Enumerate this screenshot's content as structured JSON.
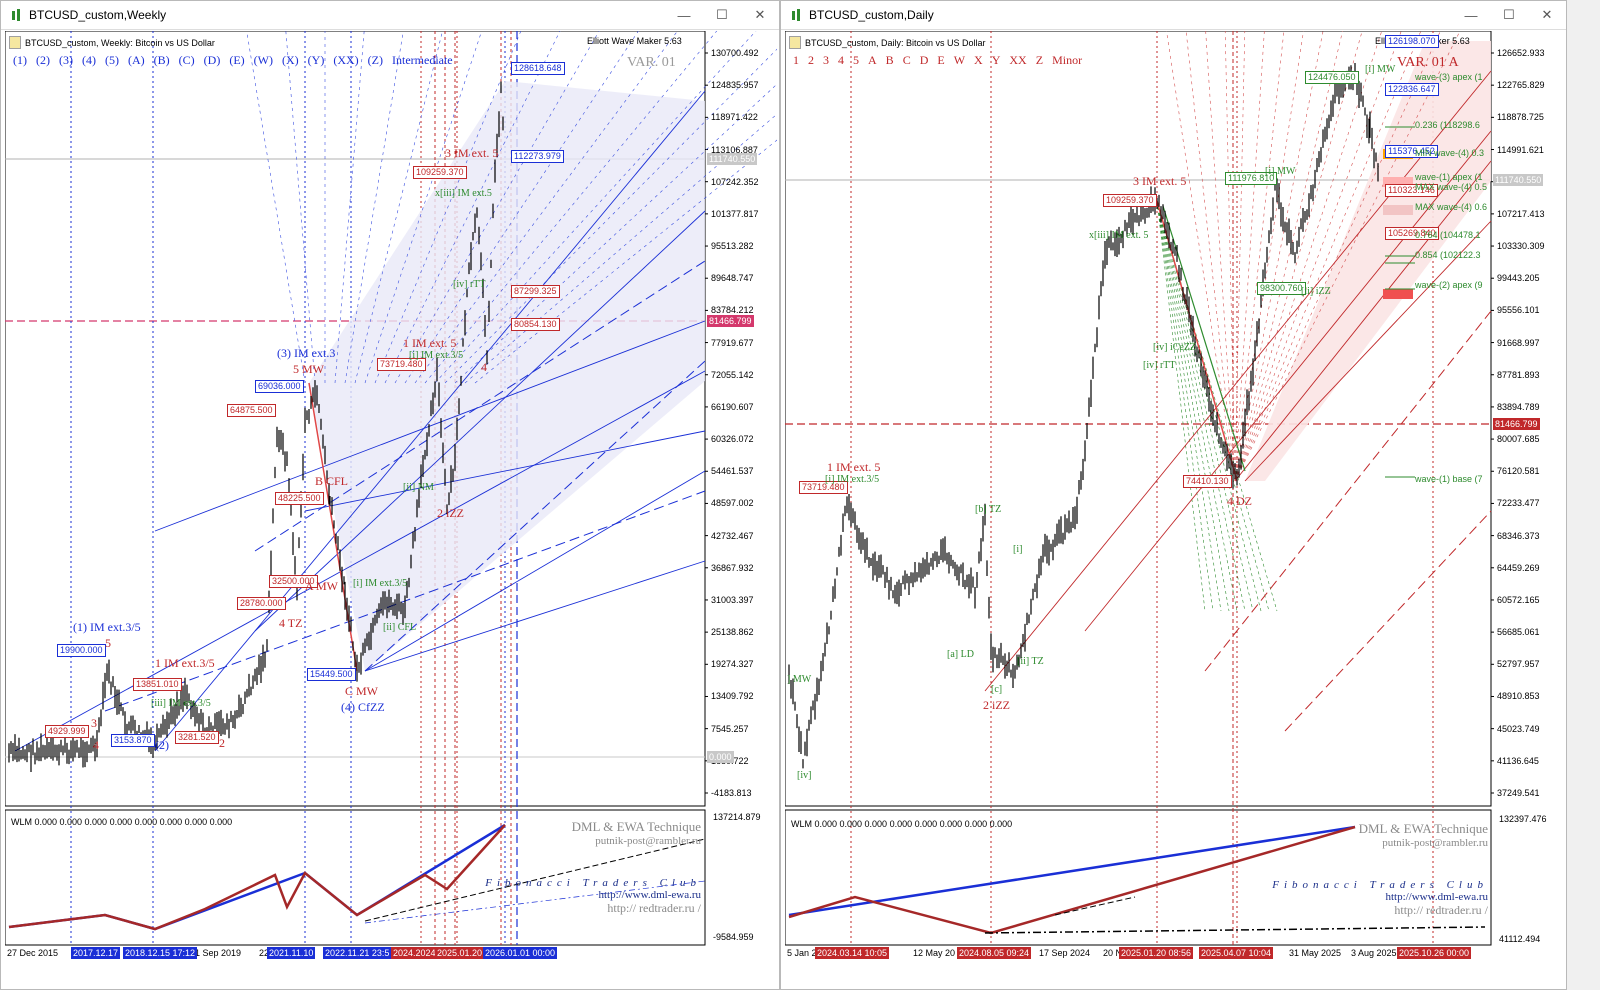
{
  "left_window": {
    "title": "BTCUSD_custom,Weekly",
    "chart_header": "BTCUSD_custom, Weekly:  Bitcoin vs US Dollar",
    "ewm_label": "Elliott Wave Maker 5.63",
    "var_label": "VAR. 01",
    "wave_buttons": [
      "(1)",
      "(2)",
      "(3)",
      "(4)",
      "(5)",
      "(A)",
      "(B)",
      "(C)",
      "(D)",
      "(E)",
      "(W)",
      "(X)",
      "(Y)",
      "(XX)",
      "(Z)",
      "Intermediate"
    ],
    "price_ticks": [
      "130700.492",
      "124835.957",
      "118971.422",
      "113106.887",
      "107242.352",
      "101377.817",
      "95513.282",
      "89648.747",
      "83784.212",
      "77919.677",
      "72055.142",
      "66190.607",
      "60326.072",
      "54461.537",
      "48597.002",
      "42732.467",
      "36867.932",
      "31003.397",
      "25138.862",
      "19274.327",
      "13409.792",
      "7545.257",
      "1680.722",
      "-4183.813"
    ],
    "current_price": "111740.550",
    "hline_price": "81466.799",
    "zero_label": "0.000",
    "price_boxes": [
      {
        "text": "128618.648",
        "color": "#1a2fd6"
      },
      {
        "text": "112273.979",
        "color": "#1a2fd6"
      },
      {
        "text": "109259.370",
        "color": "#c0282a"
      },
      {
        "text": "87299.325",
        "color": "#c0282a"
      },
      {
        "text": "80854.130",
        "color": "#c0282a"
      },
      {
        "text": "73719.480",
        "color": "#c0282a"
      },
      {
        "text": "69036.000",
        "color": "#1a2fd6"
      },
      {
        "text": "64875.500",
        "color": "#c0282a"
      },
      {
        "text": "48225.500",
        "color": "#c0282a"
      },
      {
        "text": "32500.000",
        "color": "#c0282a"
      },
      {
        "text": "28780.000",
        "color": "#c0282a"
      },
      {
        "text": "19900.000",
        "color": "#1a2fd6"
      },
      {
        "text": "15449.500",
        "color": "#1a2fd6"
      },
      {
        "text": "13851.010",
        "color": "#c0282a"
      },
      {
        "text": "4929.999",
        "color": "#c0282a"
      },
      {
        "text": "3153.870",
        "color": "#1a2fd6"
      },
      {
        "text": "3281.520",
        "color": "#c0282a"
      }
    ],
    "wave_labels": [
      {
        "text": "3 IM ext. 5",
        "color": "#c0282a"
      },
      {
        "text": "x[iii] IM ext.5",
        "color": "#2e8b2e"
      },
      {
        "text": "[iv] rTT",
        "color": "#2e8b2e"
      },
      {
        "text": "1 IM ext. 5",
        "color": "#c0282a"
      },
      {
        "text": "[i] IM ext.3/5",
        "color": "#2e8b2e"
      },
      {
        "text": "(3) IM ext.3",
        "color": "#1a2fd6"
      },
      {
        "text": "5 MW",
        "color": "#c0282a"
      },
      {
        "text": "B CFL",
        "color": "#c0282a"
      },
      {
        "text": "[ii] NM",
        "color": "#2e8b2e"
      },
      {
        "text": "2 iZZ",
        "color": "#c0282a"
      },
      {
        "text": "4",
        "color": "#c0282a"
      },
      {
        "text": "A MW",
        "color": "#c0282a"
      },
      {
        "text": "4 TZ",
        "color": "#c0282a"
      },
      {
        "text": "[i] IM ext.3/5",
        "color": "#2e8b2e"
      },
      {
        "text": "[ii] CFL",
        "color": "#2e8b2e"
      },
      {
        "text": "C MW",
        "color": "#c0282a"
      },
      {
        "text": "(4) CfZZ",
        "color": "#1a2fd6"
      },
      {
        "text": "(1) IM ext.3/5",
        "color": "#1a2fd6"
      },
      {
        "text": "1 IM ext.3/5",
        "color": "#c0282a"
      },
      {
        "text": "[iii] IM ext.3/5",
        "color": "#2e8b2e"
      },
      {
        "text": "(2)",
        "color": "#1a2fd6"
      },
      {
        "text": "2",
        "color": "#c0282a"
      },
      {
        "text": "3",
        "color": "#c0282a"
      },
      {
        "text": "5",
        "color": "#c0282a"
      },
      {
        "text": "4",
        "color": "#c0282a"
      }
    ],
    "indicator_title": "WLM 0.000 0.000 0.000 0.000 0.000 0.000 0.000 0.000",
    "indicator_ticks": [
      "137214.879",
      "-9584.959"
    ],
    "credits": {
      "line1": "DML & EWA Technique",
      "line2": "putnik-post@rambler.ru",
      "line3": "Fibonacci   Traders   Club",
      "line4": "http://www.dml-ewa.ru",
      "line5": "http://  redtrader.ru  /"
    },
    "x_labels": [
      "27 Dec 2015",
      "1 Sep 2019",
      "22"
    ],
    "x_tags": [
      {
        "text": "2017.12.17",
        "color": "#1a2fd6"
      },
      {
        "text": "2018.12.15 17:12",
        "color": "#1a2fd6"
      },
      {
        "text": "2021.11.10",
        "color": "#1a2fd6"
      },
      {
        "text": "2022.11.21 23:5",
        "color": "#1a2fd6"
      },
      {
        "text": "2024.2024",
        "color": "#c0282a"
      },
      {
        "text": "2025.01.20",
        "color": "#c0282a"
      },
      {
        "text": "2026.01.01 00:00",
        "color": "#1a2fd6"
      }
    ]
  },
  "right_window": {
    "title": "BTCUSD_custom,Daily",
    "chart_header": "BTCUSD_custom, Daily:  Bitcoin vs US Dollar",
    "ewm_label": "Elliott Wave Maker 5.63",
    "var_label": "VAR. 01 A",
    "wave_buttons": [
      "1",
      "2",
      "3",
      "4",
      "5",
      "A",
      "B",
      "C",
      "D",
      "E",
      "W",
      "X",
      "Y",
      "XX",
      "Z",
      "Minor"
    ],
    "price_ticks": [
      "126652.933",
      "122765.829",
      "118878.725",
      "114991.621",
      "111104.517",
      "107217.413",
      "103330.309",
      "99443.205",
      "95556.101",
      "91668.997",
      "87781.893",
      "83894.789",
      "80007.685",
      "76120.581",
      "72233.477",
      "68346.373",
      "64459.269",
      "60572.165",
      "56685.061",
      "52797.957",
      "48910.853",
      "45023.749",
      "41136.645",
      "37249.541"
    ],
    "current_price": "111740.550",
    "hline_price": "81466.799",
    "price_boxes": [
      {
        "text": "126198.070",
        "color": "#1a2fd6"
      },
      {
        "text": "122836.647",
        "color": "#1a2fd6"
      },
      {
        "text": "124476.050",
        "color": "#2e8b2e"
      },
      {
        "text": "115376.452",
        "color": "#1a2fd6"
      },
      {
        "text": "111976.810",
        "color": "#2e8b2e"
      },
      {
        "text": "110323.146",
        "color": "#c0282a"
      },
      {
        "text": "109259.370",
        "color": "#c0282a"
      },
      {
        "text": "105269.840",
        "color": "#c0282a"
      },
      {
        "text": "98300.760",
        "color": "#2e8b2e"
      },
      {
        "text": "74410.130",
        "color": "#c0282a"
      },
      {
        "text": "73719.480",
        "color": "#c0282a"
      }
    ],
    "fib_labels": [
      {
        "text": "wave-(3) apex (1",
        "color": "#2e8b2e"
      },
      {
        "text": "0.236 (118298.6",
        "color": "#2e8b2e"
      },
      {
        "text": "MIN wave-(4) 0.3",
        "color": "#2e8b2e"
      },
      {
        "text": "wave-(1) apex (1",
        "color": "#2e8b2e"
      },
      {
        "text": "MAX wave-(4) 0.5",
        "color": "#2e8b2e"
      },
      {
        "text": "MAX wave-(4) 0.6",
        "color": "#2e8b2e"
      },
      {
        "text": "0.764 (104478.1",
        "color": "#2e8b2e"
      },
      {
        "text": "0.854 (102122.3",
        "color": "#2e8b2e"
      },
      {
        "text": "wave-(2) apex (9",
        "color": "#2e8b2e"
      },
      {
        "text": "wave-(1) base (7",
        "color": "#2e8b2e"
      }
    ],
    "wave_labels": [
      {
        "text": "3 IM ext. 5",
        "color": "#c0282a"
      },
      {
        "text": "x[iii] IM ext. 5",
        "color": "#2e8b2e"
      },
      {
        "text": "[iv] rTT",
        "color": "#2e8b2e"
      },
      {
        "text": "[iv] iCeZZ",
        "color": "#2e8b2e"
      },
      {
        "text": "1 IM ext. 5",
        "color": "#c0282a"
      },
      {
        "text": "[i] IM ext.3/5",
        "color": "#2e8b2e"
      },
      {
        "text": "[b] TZ",
        "color": "#2e8b2e"
      },
      {
        "text": "[a] LD",
        "color": "#2e8b2e"
      },
      {
        "text": "[ii] TZ",
        "color": "#2e8b2e"
      },
      {
        "text": "2 iZZ",
        "color": "#c0282a"
      },
      {
        "text": "4 DZ",
        "color": "#c0282a"
      },
      {
        "text": "[ii] iZZ",
        "color": "#2e8b2e"
      },
      {
        "text": "[i] MW",
        "color": "#2e8b2e"
      },
      {
        "text": "[i] MW",
        "color": "#2e8b2e"
      },
      {
        "text": "[iv]",
        "color": "#2e8b2e"
      },
      {
        "text": "] MW",
        "color": "#2e8b2e"
      },
      {
        "text": "[c]",
        "color": "#2e8b2e"
      },
      {
        "text": "[i]",
        "color": "#2e8b2e"
      }
    ],
    "indicator_title": "WLM 0.000 0.000 0.000 0.000 0.000 0.000 0.000 0.000",
    "indicator_ticks": [
      "132397.476",
      "41112.494"
    ],
    "credits": {
      "line1": "DML & EWA Technique",
      "line2": "putnik-post@rambler.ru",
      "line3": "Fibonacci   Traders   Club",
      "line4": "http://www.dml-ewa.ru",
      "line5": "http://  redtrader.ru  /"
    },
    "x_labels": [
      "5 Jan 2",
      "12 May 20",
      "17 Sep 2024",
      "20 No",
      "31 May 2025",
      "3 Aug 2025"
    ],
    "x_tags": [
      {
        "text": "2024.03.14 10:05",
        "color": "#c0282a"
      },
      {
        "text": "2024.08.05 09:24",
        "color": "#c0282a"
      },
      {
        "text": "2025.01.20 08:56",
        "color": "#c0282a"
      },
      {
        "text": "2025.04.07 10:04",
        "color": "#c0282a"
      },
      {
        "text": "2025.10.26 00:00",
        "color": "#c0282a"
      }
    ]
  },
  "colors": {
    "blue": "#1a2fd6",
    "red": "#c0282a",
    "green": "#2e8b2e",
    "price_tag_bg": "#c0282a",
    "current_tag_bg": "#c0c0c0"
  }
}
